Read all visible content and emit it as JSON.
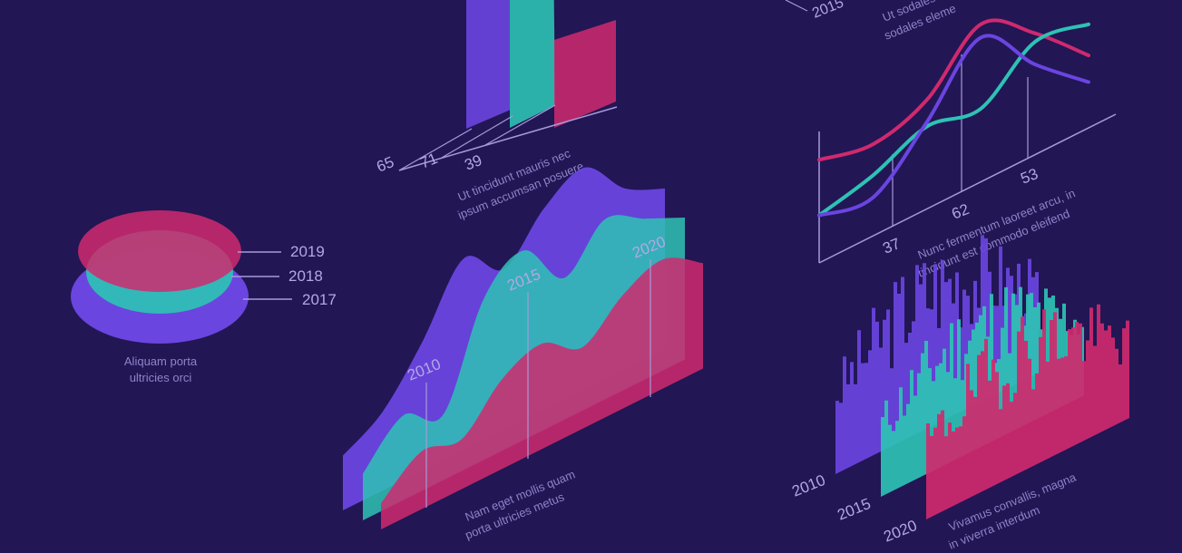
{
  "colors": {
    "background": "#221655",
    "purple": "#6a45e0",
    "teal": "#2ec2b4",
    "pink": "#cf2a6e",
    "line": "#a79ad8",
    "label": "#b3a8e3",
    "caption": "#8f84c9"
  },
  "chart_data": [
    {
      "type": "bar",
      "categories": [
        "65",
        "71",
        "39"
      ],
      "values": [
        65,
        71,
        39
      ],
      "caption": "Ut tincidunt mauris nec ipsum accumsan posuere",
      "caption_lines": [
        "Ut tincidunt mauris nec",
        "ipsum accumsan posuere"
      ]
    },
    {
      "type": "line",
      "x_labels": [
        "37",
        "62",
        "53"
      ],
      "top_labels": [
        "2015"
      ],
      "top_caption_lines": [
        "Ut sodales",
        "sodales eleme"
      ],
      "series": [
        {
          "color": "pink",
          "values": [
            0.35,
            0.42,
            0.62,
            0.96,
            0.92,
            0.82
          ]
        },
        {
          "color": "teal",
          "values": [
            0.1,
            0.28,
            0.5,
            0.58,
            0.88,
            0.96
          ]
        },
        {
          "color": "purple",
          "values": [
            0.1,
            0.18,
            0.52,
            0.9,
            0.78,
            0.7
          ]
        }
      ],
      "caption": "Nunc fermentum laoreet arcu, in tincidunt est commodo eleifend",
      "caption_lines": [
        "Nunc fermentum laoreet arcu, in",
        "tincidunt est commodo eleifend"
      ]
    },
    {
      "type": "pie",
      "layers": [
        {
          "label": "2019",
          "color": "pink"
        },
        {
          "label": "2018",
          "color": "teal"
        },
        {
          "label": "2017",
          "color": "purple"
        }
      ],
      "caption": "Aliquam porta ultricies orci",
      "caption_lines": [
        "Aliquam porta",
        "ultricies orci"
      ]
    },
    {
      "type": "area",
      "x_labels": [
        "2010",
        "2015",
        "2020"
      ],
      "series": [
        {
          "color": "purple",
          "values": [
            0.18,
            0.3,
            0.55,
            0.85,
            0.7,
            0.9,
            1.0,
            0.8,
            0.7
          ]
        },
        {
          "color": "teal",
          "values": [
            0.15,
            0.35,
            0.25,
            0.75,
            0.9,
            0.65,
            0.85,
            0.75,
            0.65
          ]
        },
        {
          "color": "pink",
          "values": [
            0.05,
            0.25,
            0.2,
            0.45,
            0.55,
            0.4,
            0.6,
            0.7,
            0.55
          ]
        }
      ],
      "caption": "Nam eget mollis quam porta ultricies metus",
      "caption_lines": [
        "Nam eget mollis quam",
        "porta ultricies metus"
      ]
    },
    {
      "type": "bar",
      "subtype": "3d-histogram",
      "row_labels": [
        "2010",
        "2015",
        "2020"
      ],
      "caption": "Vivamus convallis, magna in viverra interdum",
      "caption_lines": [
        "Vivamus convallis, magna",
        "in viverra interdum"
      ]
    }
  ]
}
